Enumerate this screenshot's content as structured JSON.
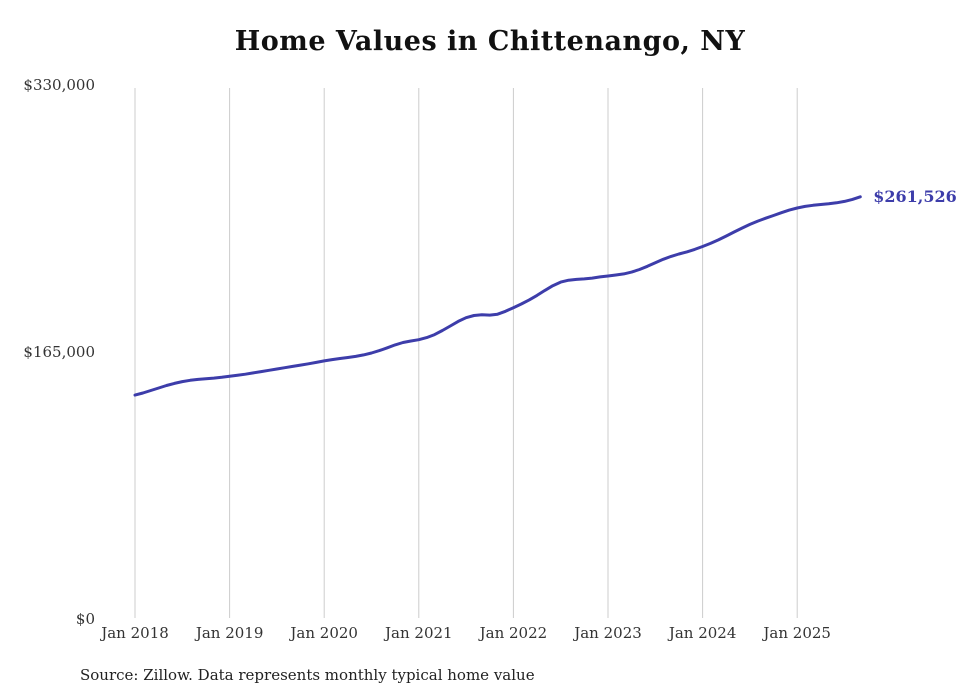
{
  "chart_data": {
    "type": "line",
    "title": "Home Values in Chittenango, NY",
    "source_note": "Source: Zillow. Data represents monthly typical home value",
    "end_label": "$261,526",
    "line_color": "#3d3daa",
    "grid_color": "#cccccc",
    "grid": "vertical-only",
    "legend": "none",
    "ylim": [
      0,
      330000
    ],
    "y_ticks": [
      {
        "value": 0,
        "label": "$0"
      },
      {
        "value": 165000,
        "label": "$165,000"
      },
      {
        "value": 330000,
        "label": "$330,000"
      }
    ],
    "x_ticks": [
      "Jan 2018",
      "Jan 2019",
      "Jan 2020",
      "Jan 2021",
      "Jan 2022",
      "Jan 2023",
      "Jan 2024",
      "Jan 2025"
    ],
    "x_start": "2018-01",
    "x_interval": "monthly",
    "series": [
      {
        "name": "Typical home value",
        "values": [
          139000,
          140300,
          141800,
          143400,
          144900,
          146200,
          147300,
          148100,
          148700,
          149100,
          149500,
          150000,
          150600,
          151200,
          151900,
          152700,
          153500,
          154300,
          155100,
          155900,
          156700,
          157500,
          158300,
          159200,
          160100,
          160900,
          161600,
          162200,
          162900,
          163800,
          165000,
          166500,
          168200,
          170000,
          171500,
          172400,
          173200,
          174500,
          176400,
          178900,
          181700,
          184500,
          186800,
          188200,
          188600,
          188400,
          189000,
          190800,
          193000,
          195300,
          197800,
          200600,
          203700,
          206600,
          208800,
          210000,
          210500,
          210800,
          211300,
          212000,
          212600,
          213200,
          213900,
          215000,
          216600,
          218600,
          220800,
          222900,
          224700,
          226200,
          227500,
          229000,
          230800,
          232700,
          234900,
          237300,
          239800,
          242200,
          244500,
          246500,
          248300,
          250000,
          251700,
          253300,
          254600,
          255600,
          256300,
          256800,
          257200,
          257800,
          258700,
          259900,
          261526
        ]
      }
    ]
  }
}
